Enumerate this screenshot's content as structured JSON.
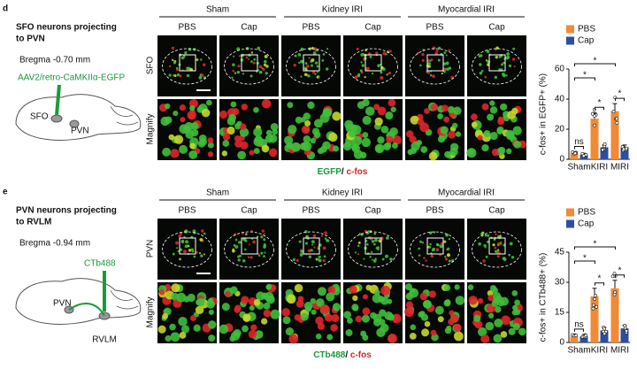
{
  "figure": {
    "panels": [
      {
        "label": "d",
        "title_lines": [
          "SFO neurons projecting",
          "to PVN"
        ],
        "bregma": "Bregma -0.70 mm",
        "injection": "AAV2/retro-CaMKIIα-EGFP",
        "brain_labels": [
          "SFO",
          "PVN"
        ],
        "groups": [
          "Sham",
          "Kidney IRI",
          "Myocardial IRI"
        ],
        "treatments": [
          "PBS",
          "Cap",
          "PBS",
          "Cap",
          "PBS",
          "Cap"
        ],
        "row_labels": [
          "SFO",
          "Magnify"
        ],
        "caption": [
          "EGFP",
          "/ ",
          "c-fos"
        ]
      },
      {
        "label": "e",
        "title_lines": [
          "PVN neurons projecting",
          "to RVLM"
        ],
        "bregma": "Bregma -0.94 mm",
        "injection": "CTb488",
        "brain_labels": [
          "PVN",
          "RVLM"
        ],
        "groups": [
          "Sham",
          "Kidney IRI",
          "Myocardial IRI"
        ],
        "treatments": [
          "PBS",
          "Cap",
          "PBS",
          "Cap",
          "PBS",
          "Cap"
        ],
        "row_labels": [
          "PVN",
          "Magnify"
        ],
        "caption": [
          "CTb488",
          "/ ",
          "c-fos"
        ]
      }
    ]
  },
  "chart_data": [
    {
      "type": "bar",
      "y_label": "c-fos+ in EGFP+ (%)",
      "categories": [
        "Sham",
        "KIRI",
        "MIRI"
      ],
      "series": [
        {
          "name": "PBS",
          "color": "#f08a36",
          "values": [
            4,
            27,
            32
          ],
          "errors": [
            1,
            4,
            5
          ]
        },
        {
          "name": "Cap",
          "color": "#2b4ea2",
          "values": [
            3,
            8,
            8
          ],
          "errors": [
            1,
            1.5,
            1.5
          ]
        }
      ],
      "ylim": [
        0,
        60
      ],
      "yticks": [
        0,
        20,
        40,
        60
      ],
      "pair_labels": [
        "ns",
        "*",
        "*"
      ],
      "comparison_labels": [
        "*",
        "*"
      ]
    },
    {
      "type": "bar",
      "y_label": "c-fos+ in CTb488+ (%)",
      "categories": [
        "Sham",
        "KIRI",
        "MIRI"
      ],
      "series": [
        {
          "name": "PBS",
          "color": "#f08a36",
          "values": [
            3,
            23,
            27
          ],
          "errors": [
            1,
            4,
            4
          ]
        },
        {
          "name": "Cap",
          "color": "#2b4ea2",
          "values": [
            3,
            6,
            7
          ],
          "errors": [
            1,
            1.5,
            1.5
          ]
        }
      ],
      "ylim": [
        0,
        45
      ],
      "yticks": [
        0,
        15,
        30,
        45
      ],
      "pair_labels": [
        "ns",
        "*",
        "*"
      ],
      "comparison_labels": [
        "*",
        "*"
      ]
    }
  ]
}
